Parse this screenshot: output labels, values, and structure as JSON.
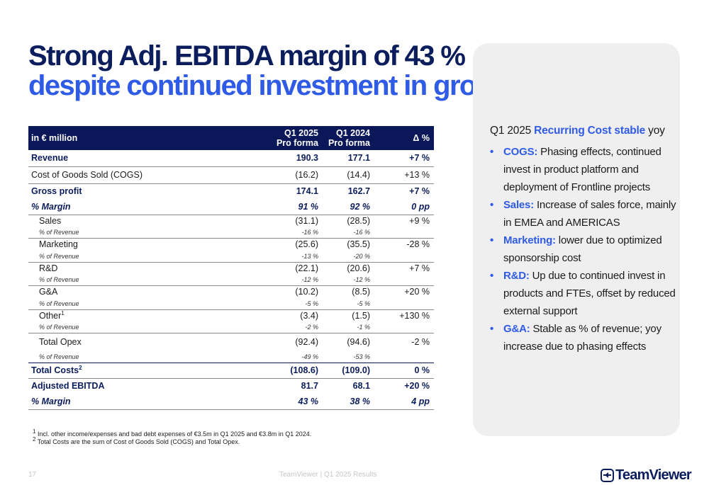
{
  "title": {
    "line1": "Strong Adj. EBITDA margin of 43 %",
    "line2": "despite continued investment in growth"
  },
  "table": {
    "header": {
      "label": "in € million",
      "col1_l1": "Q1 2025",
      "col1_l2": "Pro forma",
      "col2_l1": "Q1 2024",
      "col2_l2": "Pro forma",
      "col3": "Δ %"
    },
    "rows": {
      "revenue": {
        "label": "Revenue",
        "q1_2025": "190.3",
        "q1_2024": "177.1",
        "delta": "+7 %"
      },
      "cogs": {
        "label": "Cost of Goods Sold (COGS)",
        "q1_2025": "(16.2)",
        "q1_2024": "(14.4)",
        "delta": "+13 %"
      },
      "gross_profit": {
        "label": "Gross profit",
        "q1_2025": "174.1",
        "q1_2024": "162.7",
        "delta": "+7 %"
      },
      "gp_margin": {
        "label": "% Margin",
        "q1_2025": "91 %",
        "q1_2024": "92 %",
        "delta": "0 pp"
      },
      "sales": {
        "label": "Sales",
        "q1_2025": "(31.1)",
        "q1_2024": "(28.5)",
        "delta": "+9 %"
      },
      "sales_pct": {
        "label": "% of Revenue",
        "q1_2025": "-16 %",
        "q1_2024": "-16 %"
      },
      "marketing": {
        "label": "Marketing",
        "q1_2025": "(25.6)",
        "q1_2024": "(35.5)",
        "delta": "-28 %"
      },
      "marketing_pct": {
        "label": "% of Revenue",
        "q1_2025": "-13 %",
        "q1_2024": "-20 %"
      },
      "rnd": {
        "label": "R&D",
        "q1_2025": "(22.1)",
        "q1_2024": "(20.6)",
        "delta": "+7 %"
      },
      "rnd_pct": {
        "label": "% of Revenue",
        "q1_2025": "-12 %",
        "q1_2024": "-12 %"
      },
      "gna": {
        "label": "G&A",
        "q1_2025": "(10.2)",
        "q1_2024": "(8.5)",
        "delta": "+20 %"
      },
      "gna_pct": {
        "label": "% of Revenue",
        "q1_2025": "-5 %",
        "q1_2024": "-5 %"
      },
      "other": {
        "label": "Other",
        "sup": "1",
        "q1_2025": "(3.4)",
        "q1_2024": "(1.5)",
        "delta": "+130 %"
      },
      "other_pct": {
        "label": "% of Revenue",
        "q1_2025": "-2 %",
        "q1_2024": "-1 %"
      },
      "total_opex": {
        "label": "Total Opex",
        "q1_2025": "(92.4)",
        "q1_2024": "(94.6)",
        "delta": "-2 %"
      },
      "total_opex_pct": {
        "label": "% of Revenue",
        "q1_2025": "-49 %",
        "q1_2024": "-53 %"
      },
      "total_costs": {
        "label": "Total Costs",
        "sup": "2",
        "q1_2025": "(108.6)",
        "q1_2024": "(109.0)",
        "delta": "0 %"
      },
      "adj_ebitda": {
        "label": "Adjusted EBITDA",
        "q1_2025": "81.7",
        "q1_2024": "68.1",
        "delta": "+20 %"
      },
      "ebitda_margin": {
        "label": "% Margin",
        "q1_2025": "43 %",
        "q1_2024": "38 %",
        "delta": "4 pp"
      }
    }
  },
  "footnotes": {
    "n1_mark": "1",
    "n1": "Incl. other income/expenses and bad debt expenses of €3.5m in Q1 2025 and €3.8m in Q1 2024.",
    "n2_mark": "2",
    "n2": "Total Costs are the sum of Cost of Goods Sold (COGS) and Total Opex."
  },
  "panel": {
    "heading_pre": "Q1 2025 ",
    "heading_accent": "Recurring Cost stable",
    "heading_post": " yoy",
    "bullets": [
      {
        "kw": "COGS:",
        "text": " Phasing effects, continued invest in product platform and deployment of Frontline projects"
      },
      {
        "kw": "Sales:",
        "text": " Increase of sales force, mainly in EMEA and AMERICAS"
      },
      {
        "kw": "Marketing:",
        "text": " lower due to optimized sponsorship cost"
      },
      {
        "kw": "R&D:",
        "text": " Up due to continued invest in products and FTEs, offset by reduced external support"
      },
      {
        "kw": "G&A:",
        "text": " Stable as % of revenue; yoy increase due to phasing effects"
      }
    ]
  },
  "footer": {
    "page_number": "17",
    "center": "TeamViewer | Q1 2025 Results",
    "logo_text": "TeamViewer"
  },
  "colors": {
    "navy": "#0b1d5c",
    "accent_blue": "#2f5be6",
    "header_bg": "#0a1758",
    "panel_bg": "#efefef"
  }
}
